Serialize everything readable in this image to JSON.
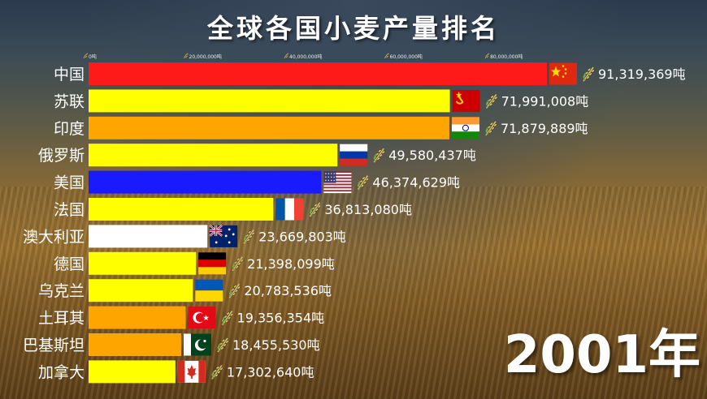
{
  "chart_data": {
    "type": "bar",
    "orientation": "horizontal",
    "title": "全球各国小麦产量排名",
    "unit": "吨",
    "year": "2001年",
    "xlim": [
      0,
      92000000
    ],
    "ticks": [
      0,
      20000000,
      40000000,
      60000000,
      80000000
    ],
    "tick_labels": [
      "0吨",
      "20,000,000吨",
      "40,000,000吨",
      "60,000,000吨",
      "80,000,000吨"
    ],
    "grid": false,
    "categories": [
      "中国",
      "苏联",
      "印度",
      "俄罗斯",
      "美国",
      "法国",
      "澳大利亚",
      "德国",
      "乌克兰",
      "土耳其",
      "巴基斯坦",
      "加拿大"
    ],
    "values": [
      91319369,
      71991008,
      71879889,
      49580437,
      46374629,
      36813080,
      23669803,
      21398099,
      20783536,
      19356354,
      18455530,
      17302640
    ],
    "value_labels": [
      "91,319,369吨",
      "71,991,008吨",
      "71,879,889吨",
      "49,580,437吨",
      "46,374,629吨",
      "36,813,080吨",
      "23,669,803吨",
      "21,398,099吨",
      "20,783,536吨",
      "19,356,354吨",
      "18,455,530吨",
      "17,302,640吨"
    ],
    "bar_colors": [
      "#ff1a1a",
      "#ffff00",
      "#ffa500",
      "#ffff00",
      "#1a1aff",
      "#ffff00",
      "#ffffff",
      "#ffff00",
      "#ffff00",
      "#ffa500",
      "#ffa500",
      "#ffff00"
    ],
    "flags": [
      "china-flag",
      "ussr-flag",
      "india-flag",
      "russia-flag",
      "usa-flag",
      "france-flag",
      "australia-flag",
      "germany-flag",
      "ukraine-flag",
      "turkey-flag",
      "pakistan-flag",
      "canada-flag"
    ],
    "value_icon": "wheat-icon"
  }
}
